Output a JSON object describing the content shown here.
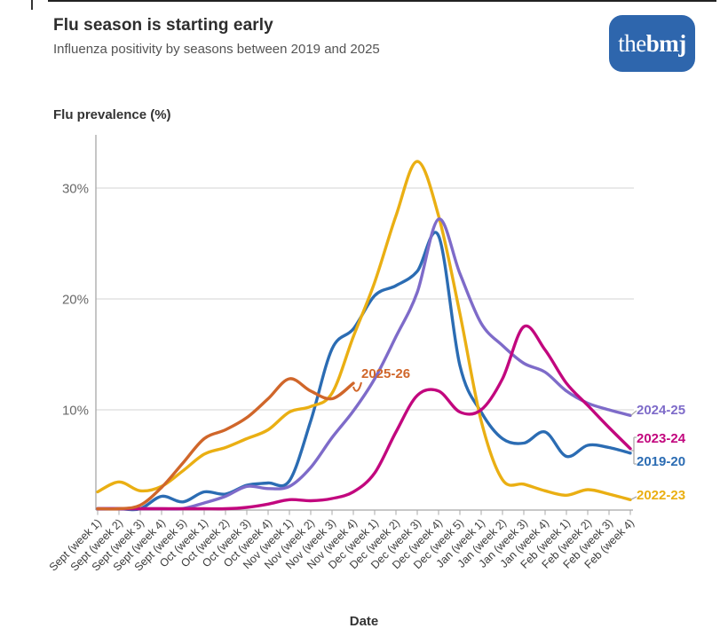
{
  "page": {
    "title": "Flu season is starting early",
    "subtitle": "Influenza positivity by seasons between 2019 and 2025",
    "logo": {
      "prefix": "the",
      "suffix": "bmj",
      "bg_color": "#2e66ad",
      "text_color": "#ffffff"
    }
  },
  "chart_data": {
    "type": "line",
    "title": "Flu season is starting early",
    "subtitle": "Influenza positivity by seasons between 2019 and 2025",
    "ylabel": "Flu prevalence (%)",
    "xlabel": "Date",
    "ylim": [
      0,
      34
    ],
    "grid": "horizontal",
    "legend_position": "line-end-labels",
    "yticks": [
      {
        "value": 10,
        "label": "10%"
      },
      {
        "value": 20,
        "label": "20%"
      },
      {
        "value": 30,
        "label": "30%"
      }
    ],
    "categories": [
      "Sept (week 1)",
      "Sept (week 2)",
      "Sept (week 3)",
      "Sept (week 4)",
      "Sept (week 5)",
      "Oct (week 1)",
      "Oct (week 2)",
      "Oct (week 3)",
      "Oct (week 4)",
      "Nov (week 1)",
      "Nov (week 2)",
      "Nov (week 3)",
      "Nov (week 4)",
      "Dec (week 1)",
      "Dec (week 2)",
      "Dec (week 3)",
      "Dec (week 4)",
      "Dec (week 5)",
      "Jan (week 1)",
      "Jan (week 2)",
      "Jan (week 3)",
      "Jan (week 4)",
      "Feb (week 1)",
      "Feb (week 2)",
      "Feb (week 3)",
      "Feb (week 4)"
    ],
    "series": [
      {
        "name": "2019-20",
        "color": "#2b6cb3",
        "values": [
          0.5,
          0.8,
          0.6,
          2.2,
          1.7,
          2.6,
          2.4,
          3.2,
          3.4,
          3.6,
          9.0,
          15.5,
          17.3,
          20.3,
          21.2,
          22.5,
          25.7,
          14.0,
          9.8,
          7.4,
          7.0,
          8.0,
          5.8,
          6.8,
          6.6,
          6.1
        ]
      },
      {
        "name": "2022-23",
        "color": "#eaaf13",
        "values": [
          2.6,
          3.5,
          2.7,
          3.1,
          4.5,
          6.0,
          6.6,
          7.4,
          8.2,
          9.8,
          10.3,
          11.5,
          16.6,
          21.5,
          27.5,
          32.4,
          27.5,
          18.7,
          9.0,
          3.7,
          3.3,
          2.7,
          2.3,
          2.8,
          2.4,
          1.9
        ]
      },
      {
        "name": "2024-25",
        "color": "#7e6bc9",
        "values": [
          0.4,
          0.3,
          0.4,
          0.6,
          1.1,
          1.6,
          2.2,
          3.1,
          2.9,
          3.1,
          4.8,
          7.5,
          9.9,
          12.8,
          16.6,
          20.6,
          27.2,
          22.3,
          17.8,
          15.8,
          14.2,
          13.4,
          11.7,
          10.6,
          10.0,
          9.5
        ]
      },
      {
        "name": "2023-24",
        "color": "#c2077e",
        "values": [
          0.3,
          0.2,
          0.2,
          0.4,
          0.5,
          0.8,
          1.0,
          1.2,
          1.5,
          1.9,
          1.8,
          2.0,
          2.6,
          4.3,
          8.0,
          11.3,
          11.7,
          9.8,
          10.0,
          12.8,
          17.5,
          15.4,
          12.4,
          10.4,
          8.4,
          6.5
        ]
      },
      {
        "name": "2025-26",
        "color": "#d0662a",
        "values": [
          0.6,
          0.7,
          1.4,
          3.0,
          5.2,
          7.4,
          8.2,
          9.3,
          11.0,
          12.8,
          11.7,
          11.0,
          12.4
        ]
      }
    ]
  }
}
